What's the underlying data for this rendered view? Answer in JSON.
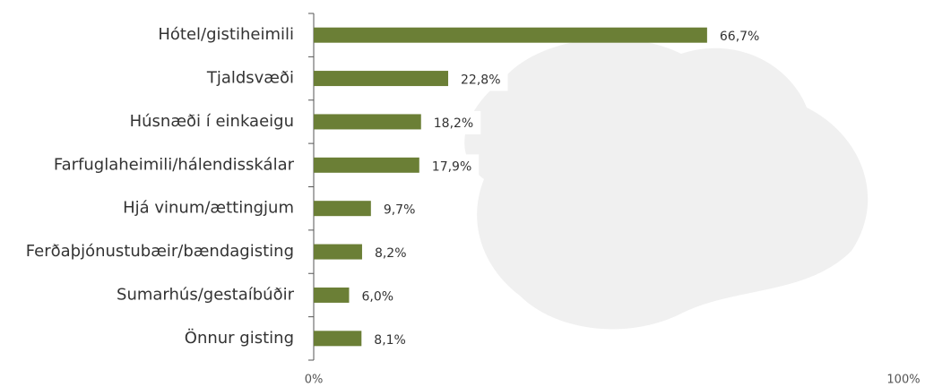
{
  "chart_data": {
    "type": "bar",
    "orientation": "horizontal",
    "categories": [
      "Hótel/gistiheimili",
      "Tjaldsvæði",
      "Húsnæði í einkaeigu",
      "Farfuglaheimili/hálendisskálar",
      "Hjá vinum/ættingjum",
      "Ferðaþjónustubæir/bændagisting",
      "Sumarhús/gestaíbúðir",
      "Önnur gisting"
    ],
    "values": [
      66.7,
      22.8,
      18.2,
      17.9,
      9.7,
      8.2,
      6.0,
      8.1
    ],
    "value_labels": [
      "66,7%",
      "22,8%",
      "18,2%",
      "17,9%",
      "9,7%",
      "8,2%",
      "6,0%",
      "8,1%"
    ],
    "color": "#6b7f36",
    "xlim": [
      0,
      100
    ],
    "xticks": [
      {
        "value": 0,
        "label": "0%"
      },
      {
        "value": 100,
        "label": "100%"
      }
    ]
  }
}
